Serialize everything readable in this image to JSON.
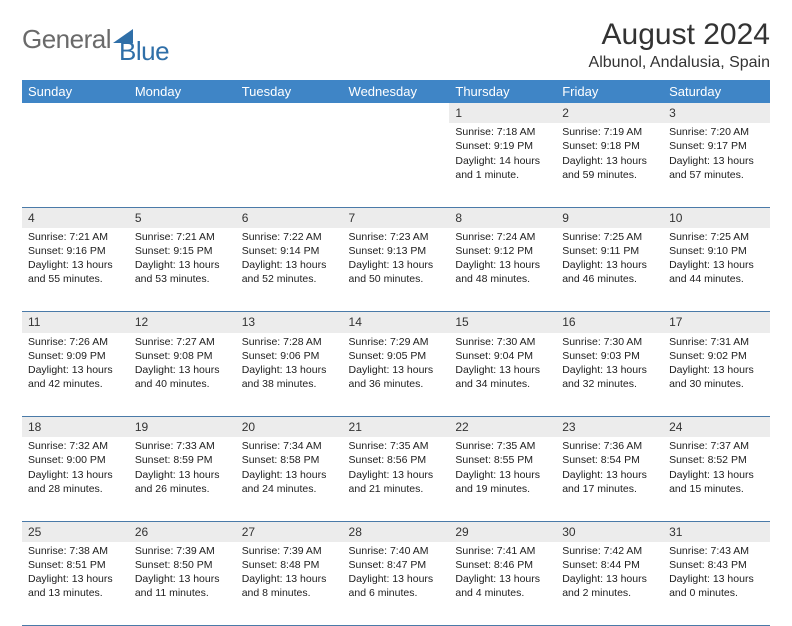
{
  "brand": {
    "part1": "General",
    "part2": "Blue"
  },
  "title": "August 2024",
  "location": "Albunol, Andalusia, Spain",
  "colors": {
    "header_bg": "#3f85c6",
    "header_fg": "#ffffff",
    "grid_line": "#4a7aa8",
    "daynum_bg": "#ececec",
    "logo_gray": "#6a6a6a",
    "logo_blue": "#2f6fa8"
  },
  "weekdays": [
    "Sunday",
    "Monday",
    "Tuesday",
    "Wednesday",
    "Thursday",
    "Friday",
    "Saturday"
  ],
  "weeks": [
    [
      null,
      null,
      null,
      null,
      {
        "n": "1",
        "sr": "7:18 AM",
        "ss": "9:19 PM",
        "dl": "14 hours and 1 minute."
      },
      {
        "n": "2",
        "sr": "7:19 AM",
        "ss": "9:18 PM",
        "dl": "13 hours and 59 minutes."
      },
      {
        "n": "3",
        "sr": "7:20 AM",
        "ss": "9:17 PM",
        "dl": "13 hours and 57 minutes."
      }
    ],
    [
      {
        "n": "4",
        "sr": "7:21 AM",
        "ss": "9:16 PM",
        "dl": "13 hours and 55 minutes."
      },
      {
        "n": "5",
        "sr": "7:21 AM",
        "ss": "9:15 PM",
        "dl": "13 hours and 53 minutes."
      },
      {
        "n": "6",
        "sr": "7:22 AM",
        "ss": "9:14 PM",
        "dl": "13 hours and 52 minutes."
      },
      {
        "n": "7",
        "sr": "7:23 AM",
        "ss": "9:13 PM",
        "dl": "13 hours and 50 minutes."
      },
      {
        "n": "8",
        "sr": "7:24 AM",
        "ss": "9:12 PM",
        "dl": "13 hours and 48 minutes."
      },
      {
        "n": "9",
        "sr": "7:25 AM",
        "ss": "9:11 PM",
        "dl": "13 hours and 46 minutes."
      },
      {
        "n": "10",
        "sr": "7:25 AM",
        "ss": "9:10 PM",
        "dl": "13 hours and 44 minutes."
      }
    ],
    [
      {
        "n": "11",
        "sr": "7:26 AM",
        "ss": "9:09 PM",
        "dl": "13 hours and 42 minutes."
      },
      {
        "n": "12",
        "sr": "7:27 AM",
        "ss": "9:08 PM",
        "dl": "13 hours and 40 minutes."
      },
      {
        "n": "13",
        "sr": "7:28 AM",
        "ss": "9:06 PM",
        "dl": "13 hours and 38 minutes."
      },
      {
        "n": "14",
        "sr": "7:29 AM",
        "ss": "9:05 PM",
        "dl": "13 hours and 36 minutes."
      },
      {
        "n": "15",
        "sr": "7:30 AM",
        "ss": "9:04 PM",
        "dl": "13 hours and 34 minutes."
      },
      {
        "n": "16",
        "sr": "7:30 AM",
        "ss": "9:03 PM",
        "dl": "13 hours and 32 minutes."
      },
      {
        "n": "17",
        "sr": "7:31 AM",
        "ss": "9:02 PM",
        "dl": "13 hours and 30 minutes."
      }
    ],
    [
      {
        "n": "18",
        "sr": "7:32 AM",
        "ss": "9:00 PM",
        "dl": "13 hours and 28 minutes."
      },
      {
        "n": "19",
        "sr": "7:33 AM",
        "ss": "8:59 PM",
        "dl": "13 hours and 26 minutes."
      },
      {
        "n": "20",
        "sr": "7:34 AM",
        "ss": "8:58 PM",
        "dl": "13 hours and 24 minutes."
      },
      {
        "n": "21",
        "sr": "7:35 AM",
        "ss": "8:56 PM",
        "dl": "13 hours and 21 minutes."
      },
      {
        "n": "22",
        "sr": "7:35 AM",
        "ss": "8:55 PM",
        "dl": "13 hours and 19 minutes."
      },
      {
        "n": "23",
        "sr": "7:36 AM",
        "ss": "8:54 PM",
        "dl": "13 hours and 17 minutes."
      },
      {
        "n": "24",
        "sr": "7:37 AM",
        "ss": "8:52 PM",
        "dl": "13 hours and 15 minutes."
      }
    ],
    [
      {
        "n": "25",
        "sr": "7:38 AM",
        "ss": "8:51 PM",
        "dl": "13 hours and 13 minutes."
      },
      {
        "n": "26",
        "sr": "7:39 AM",
        "ss": "8:50 PM",
        "dl": "13 hours and 11 minutes."
      },
      {
        "n": "27",
        "sr": "7:39 AM",
        "ss": "8:48 PM",
        "dl": "13 hours and 8 minutes."
      },
      {
        "n": "28",
        "sr": "7:40 AM",
        "ss": "8:47 PM",
        "dl": "13 hours and 6 minutes."
      },
      {
        "n": "29",
        "sr": "7:41 AM",
        "ss": "8:46 PM",
        "dl": "13 hours and 4 minutes."
      },
      {
        "n": "30",
        "sr": "7:42 AM",
        "ss": "8:44 PM",
        "dl": "13 hours and 2 minutes."
      },
      {
        "n": "31",
        "sr": "7:43 AM",
        "ss": "8:43 PM",
        "dl": "13 hours and 0 minutes."
      }
    ]
  ]
}
